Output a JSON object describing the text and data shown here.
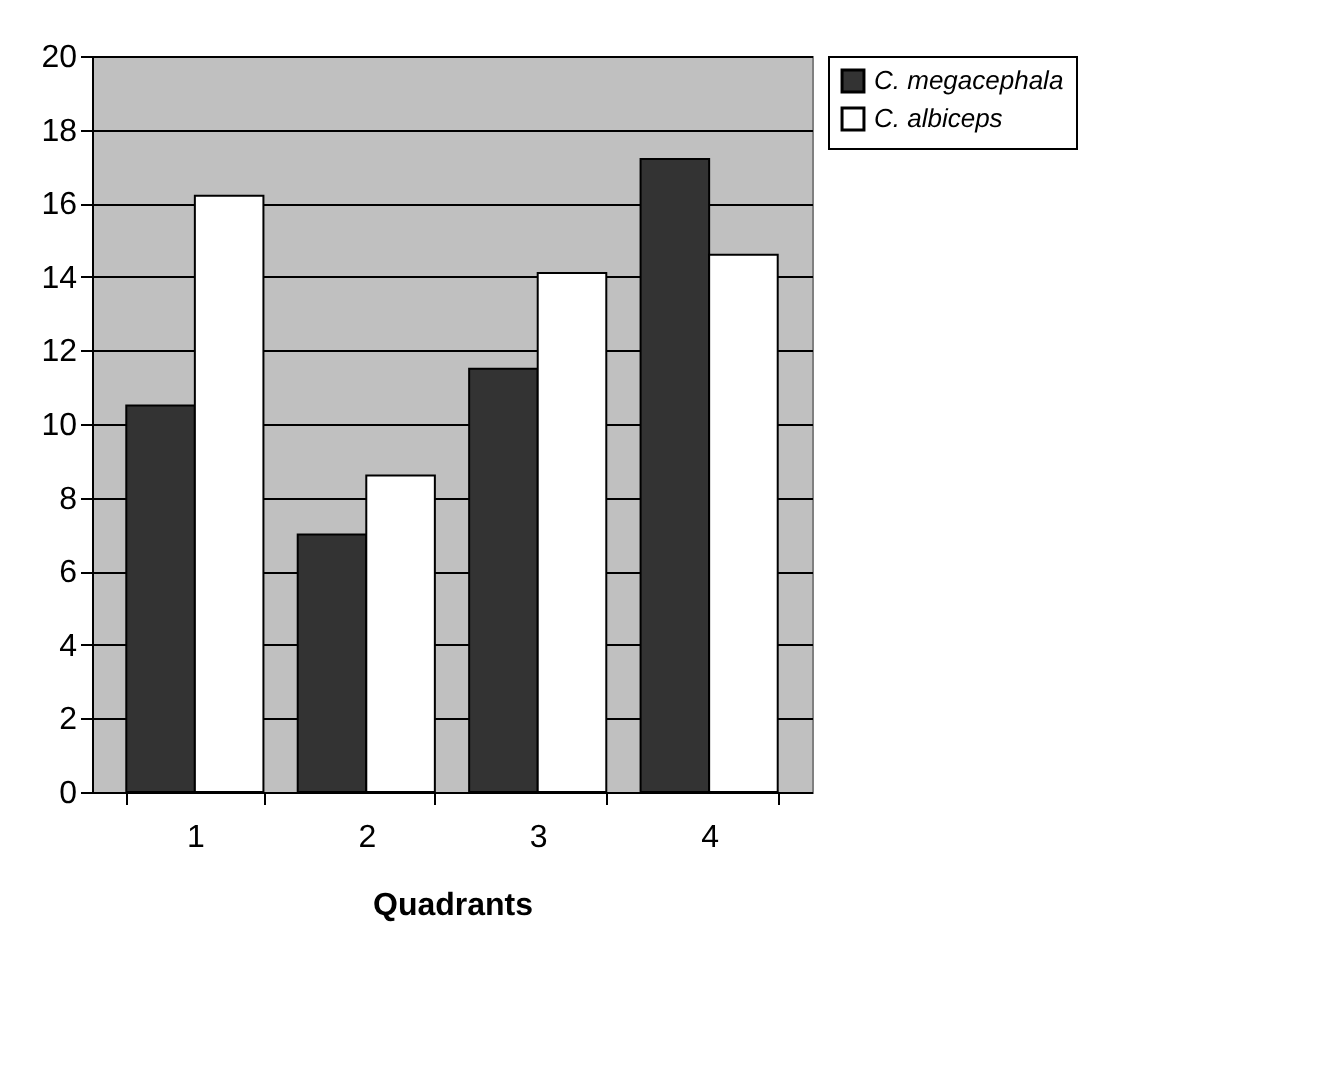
{
  "chart_data": {
    "type": "bar",
    "xlabel": "Quadrants",
    "categories": [
      "1",
      "2",
      "3",
      "4"
    ],
    "series": [
      {
        "name": "C. megacephala",
        "color": "#333333",
        "values": [
          10.5,
          7.0,
          11.5,
          17.2
        ]
      },
      {
        "name": "C. albiceps",
        "color": "#ffffff",
        "values": [
          16.2,
          8.6,
          14.1,
          14.6
        ]
      }
    ],
    "ylim": [
      0,
      20
    ],
    "yticks": [
      0,
      2,
      4,
      6,
      8,
      10,
      12,
      14,
      16,
      18,
      20
    ],
    "grid": "y",
    "legend": "right"
  }
}
